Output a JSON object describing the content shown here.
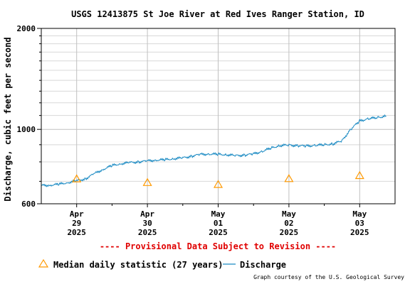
{
  "colors": {
    "discharge_line": "#1a8ac3",
    "median_marker": "#ff9900",
    "provisional_text": "#e00000",
    "grid_major": "#c0c0c0",
    "grid_minor": "#d8d8d8",
    "frame": "#000000"
  },
  "chart_data": {
    "type": "line",
    "title": "USGS 12413875 St Joe River at Red Ives Ranger Station, ID",
    "ylabel": "Discharge, cubic feet per second",
    "xlabel": "",
    "y_scale": "log",
    "ylim": [
      600,
      2000
    ],
    "y_ticks": [
      {
        "value": 600,
        "label": "600"
      },
      {
        "value": 1000,
        "label": "1000"
      },
      {
        "value": 2000,
        "label": "2000"
      }
    ],
    "y_minor_ticks": [
      700,
      800,
      900,
      1100,
      1200,
      1300,
      1400,
      1500,
      1600,
      1700,
      1800,
      1900
    ],
    "xlim": [
      "2025-04-28 12:00",
      "2025-05-03 12:00"
    ],
    "x_ticks": [
      {
        "date": "2025-04-29",
        "line1": "Apr",
        "line2": "29",
        "line3": "2025"
      },
      {
        "date": "2025-04-30",
        "line1": "Apr",
        "line2": "30",
        "line3": "2025"
      },
      {
        "date": "2025-05-01",
        "line1": "May",
        "line2": "01",
        "line3": "2025"
      },
      {
        "date": "2025-05-02",
        "line1": "May",
        "line2": "02",
        "line3": "2025"
      },
      {
        "date": "2025-05-03",
        "line1": "May",
        "line2": "03",
        "line3": "2025"
      }
    ],
    "grid": true,
    "series": [
      {
        "name": "Discharge",
        "style": "line",
        "x": [
          "2025-04-28 12:00",
          "2025-04-28 15:00",
          "2025-04-28 18:00",
          "2025-04-28 21:00",
          "2025-04-29 00:00",
          "2025-04-29 03:00",
          "2025-04-29 06:00",
          "2025-04-29 09:00",
          "2025-04-29 12:00",
          "2025-04-29 15:00",
          "2025-04-29 18:00",
          "2025-04-29 21:00",
          "2025-04-30 00:00",
          "2025-04-30 03:00",
          "2025-04-30 06:00",
          "2025-04-30 09:00",
          "2025-04-30 12:00",
          "2025-04-30 15:00",
          "2025-04-30 18:00",
          "2025-04-30 21:00",
          "2025-05-01 00:00",
          "2025-05-01 03:00",
          "2025-05-01 06:00",
          "2025-05-01 09:00",
          "2025-05-01 12:00",
          "2025-05-01 15:00",
          "2025-05-01 18:00",
          "2025-05-01 21:00",
          "2025-05-02 00:00",
          "2025-05-02 03:00",
          "2025-05-02 06:00",
          "2025-05-02 09:00",
          "2025-05-02 12:00",
          "2025-05-02 15:00",
          "2025-05-02 18:00",
          "2025-05-02 21:00",
          "2025-05-03 00:00",
          "2025-05-03 03:00",
          "2025-05-03 06:00",
          "2025-05-03 09:00"
        ],
        "values": [
          680,
          682,
          686,
          694,
          702,
          712,
          738,
          760,
          780,
          790,
          796,
          800,
          805,
          810,
          812,
          818,
          822,
          832,
          842,
          844,
          843,
          840,
          835,
          838,
          845,
          860,
          880,
          895,
          898,
          894,
          892,
          896,
          900,
          905,
          925,
          1000,
          1060,
          1075,
          1085,
          1095
        ]
      },
      {
        "name": "Median daily statistic (27 years)",
        "style": "triangle",
        "x": [
          "2025-04-29 00:00",
          "2025-04-30 00:00",
          "2025-05-01 00:00",
          "2025-05-02 00:00",
          "2025-05-03 00:00"
        ],
        "values": [
          713,
          695,
          686,
          714,
          729
        ]
      }
    ]
  },
  "provisional_note": "---- Provisional Data Subject to Revision ----",
  "legend": {
    "median_label": "Median daily statistic (27 years)",
    "discharge_label": "Discharge"
  },
  "credit": "Graph courtesy of the U.S. Geological Survey"
}
